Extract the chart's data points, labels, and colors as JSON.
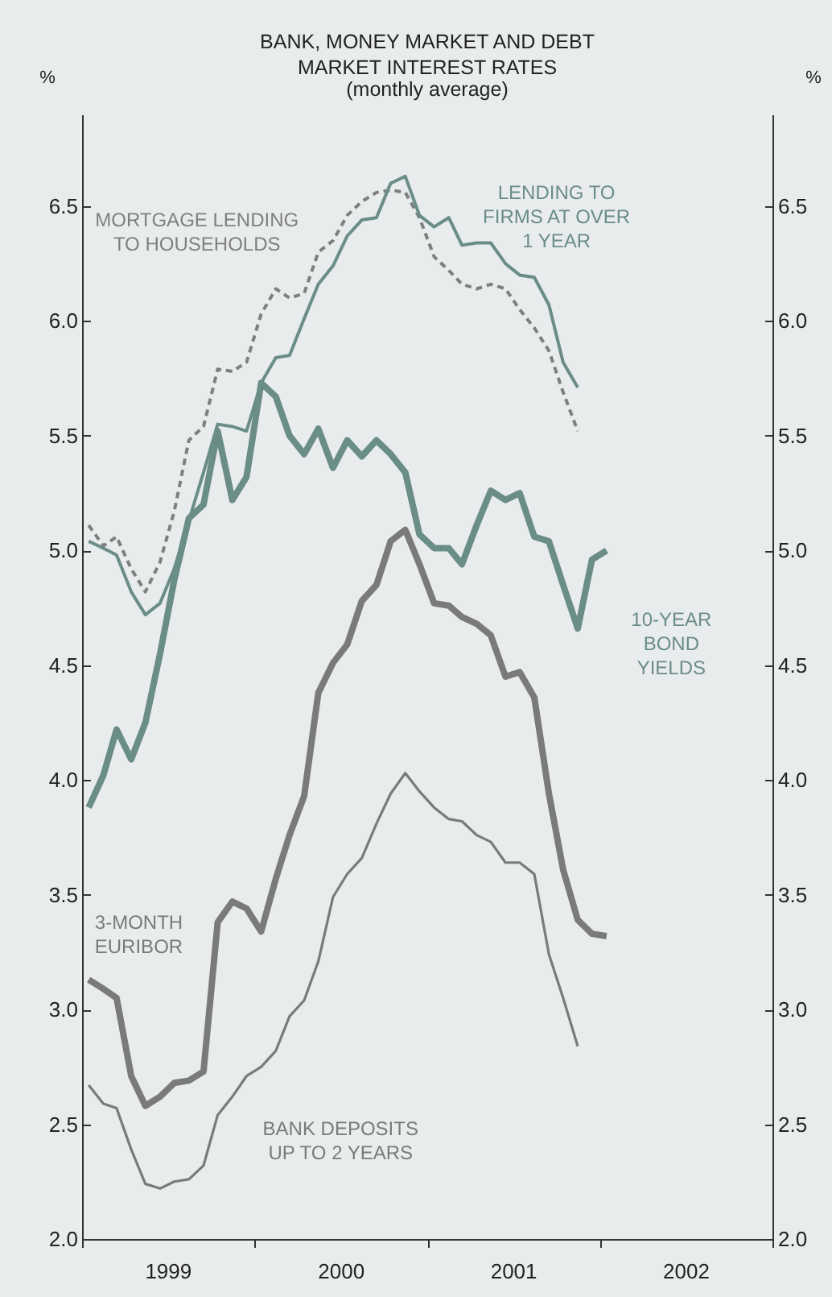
{
  "chart_data": {
    "type": "line",
    "title": "BANK, MONEY MARKET AND DEBT MARKET INTEREST RATES",
    "subtitle": "(monthly average)",
    "ylabel": "%",
    "y2label": "%",
    "x": [
      "1999-01-15",
      "1999-02-15",
      "1999-03-15",
      "1999-04-15",
      "1999-05-15",
      "1999-06-15",
      "1999-07-15",
      "1999-08-15",
      "1999-09-15",
      "1999-10-15",
      "1999-11-15",
      "1999-12-15",
      "2000-01-15",
      "2000-02-15",
      "2000-03-15",
      "2000-04-15",
      "2000-05-15",
      "2000-06-15",
      "2000-07-15",
      "2000-08-15",
      "2000-09-15",
      "2000-10-15",
      "2000-11-15",
      "2000-12-15",
      "2001-01-15",
      "2001-02-15",
      "2001-03-15",
      "2001-04-15",
      "2001-05-15",
      "2001-06-15",
      "2001-07-15",
      "2001-08-15",
      "2001-09-15",
      "2001-10-15",
      "2001-11-15",
      "2001-12-15",
      "2002-01-15"
    ],
    "series": [
      {
        "name": "MORTGAGE LENDING TO HOUSEHOLDS",
        "color": "#7f7f7f",
        "line_style": "dashed",
        "values": [
          5.11,
          5.02,
          5.06,
          4.92,
          4.82,
          4.95,
          5.17,
          5.48,
          5.54,
          5.79,
          5.78,
          5.82,
          6.03,
          6.14,
          6.1,
          6.12,
          6.3,
          6.35,
          6.46,
          6.52,
          6.56,
          6.57,
          6.56,
          6.45,
          6.28,
          6.22,
          6.16,
          6.14,
          6.16,
          6.14,
          6.05,
          5.97,
          5.87,
          5.69,
          5.52,
          null,
          null
        ]
      },
      {
        "name": "LENDING TO FIRMS AT OVER 1 YEAR",
        "color": "#6b8d87",
        "line_style": "solid",
        "values": [
          5.04,
          5.01,
          4.98,
          4.82,
          4.72,
          4.77,
          4.92,
          5.13,
          5.34,
          5.55,
          5.54,
          5.52,
          5.73,
          5.84,
          5.85,
          6.01,
          6.16,
          6.24,
          6.37,
          6.44,
          6.45,
          6.6,
          6.63,
          6.46,
          6.41,
          6.45,
          6.33,
          6.34,
          6.34,
          6.25,
          6.2,
          6.19,
          6.07,
          5.82,
          5.71,
          null,
          null
        ]
      },
      {
        "name": "10-YEAR BOND YIELDS",
        "color": "#6b8d87",
        "line_style": "solid",
        "values": [
          3.88,
          4.02,
          4.22,
          4.09,
          4.25,
          4.55,
          4.87,
          5.14,
          5.2,
          5.52,
          5.22,
          5.32,
          5.73,
          5.67,
          5.5,
          5.42,
          5.53,
          5.36,
          5.48,
          5.41,
          5.48,
          5.42,
          5.34,
          5.07,
          5.01,
          5.01,
          4.94,
          5.11,
          5.26,
          5.22,
          5.25,
          5.06,
          5.04,
          4.85,
          4.66,
          4.96,
          5.0
        ]
      },
      {
        "name": "3-MONTH EURIBOR",
        "color": "#7a7a7a",
        "line_style": "solid",
        "values": [
          3.13,
          3.09,
          3.05,
          2.71,
          2.58,
          2.62,
          2.68,
          2.69,
          2.73,
          3.38,
          3.47,
          3.44,
          3.34,
          3.57,
          3.76,
          3.93,
          4.38,
          4.51,
          4.59,
          4.78,
          4.85,
          5.04,
          5.09,
          4.94,
          4.77,
          4.76,
          4.71,
          4.68,
          4.63,
          4.45,
          4.47,
          4.36,
          3.94,
          3.61,
          3.39,
          3.33,
          3.32
        ]
      },
      {
        "name": "BANK DEPOSITS UP TO 2 YEARS",
        "color": "#7a7a7a",
        "line_style": "solid",
        "values": [
          2.67,
          2.59,
          2.57,
          2.39,
          2.24,
          2.22,
          2.25,
          2.26,
          2.32,
          2.54,
          2.62,
          2.71,
          2.75,
          2.82,
          2.97,
          3.04,
          3.21,
          3.49,
          3.59,
          3.66,
          3.81,
          3.94,
          4.03,
          3.95,
          3.88,
          3.83,
          3.82,
          3.76,
          3.73,
          3.64,
          3.64,
          3.59,
          3.24,
          3.05,
          2.84,
          null,
          null
        ]
      }
    ],
    "xlim": [
      "1999-01",
      "2003-01"
    ],
    "xticks": [
      {
        "value": "1999-01",
        "label": null
      },
      {
        "value": "1999-07",
        "label": "1999"
      },
      {
        "value": "2000-01",
        "label": null
      },
      {
        "value": "2000-07",
        "label": "2000"
      },
      {
        "value": "2001-01",
        "label": null
      },
      {
        "value": "2001-07",
        "label": "2001"
      },
      {
        "value": "2002-01",
        "label": null
      },
      {
        "value": "2002-07",
        "label": "2002"
      },
      {
        "value": "2003-01",
        "label": null
      }
    ],
    "ylim": [
      2.0,
      6.9
    ],
    "yticks": [
      {
        "value": 2,
        "label": "2.0"
      },
      {
        "value": 2.5,
        "label": "2.5"
      },
      {
        "value": 3,
        "label": "3.0"
      },
      {
        "value": 3.5,
        "label": "3.5"
      },
      {
        "value": 4,
        "label": "4.0"
      },
      {
        "value": 4.5,
        "label": "4.5"
      },
      {
        "value": 5,
        "label": "5.0"
      },
      {
        "value": 5.5,
        "label": "5.5"
      },
      {
        "value": 6,
        "label": "6.0"
      },
      {
        "value": 6.5,
        "label": "6.5"
      }
    ],
    "y2lim": [
      2.0,
      6.9
    ],
    "y2ticks": [
      {
        "value": 2,
        "label": "2.0"
      },
      {
        "value": 2.5,
        "label": "2.5"
      },
      {
        "value": 3,
        "label": "3.0"
      },
      {
        "value": 3.5,
        "label": "3.5"
      },
      {
        "value": 4,
        "label": "4.0"
      },
      {
        "value": 4.5,
        "label": "4.5"
      },
      {
        "value": 5,
        "label": "5.0"
      },
      {
        "value": 5.5,
        "label": "5.5"
      },
      {
        "value": 6,
        "label": "6.0"
      },
      {
        "value": 6.5,
        "label": "6.5"
      }
    ],
    "grid": false,
    "marker": "none"
  }
}
